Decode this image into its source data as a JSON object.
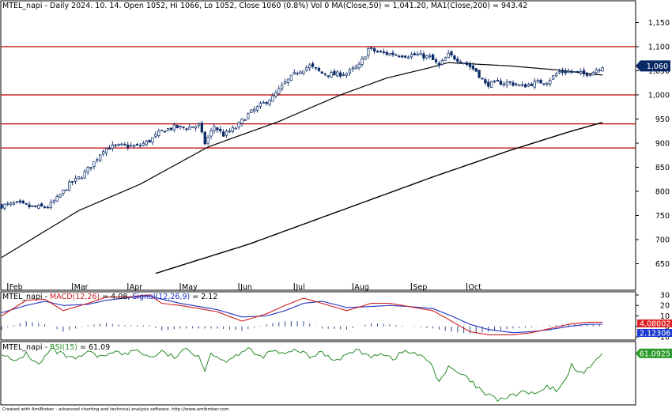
{
  "header": {
    "title": "MTEL_napi - Daily 2024. 10. 14. Open 1052, Hi 1066, Lo 1052, Close 1060 (0.8%) Vol 0",
    "ma50_label": "MA(Close,50)",
    "ma50_value": "= 1,041.20,",
    "ma200_label": "MA1(Close,200)",
    "ma200_value": "= 943.42"
  },
  "macd_header": {
    "ticker": "MTEL_napi -",
    "macd_label": "MACD(12,26)",
    "macd_value": "= 4.08,",
    "signal_label": "Signal(12,26,9)",
    "signal_value": "= 2.12"
  },
  "rsi_header": {
    "ticker": "MTEL_napi -",
    "rsi_label": "RSI(15)",
    "rsi_value": "= 61.09"
  },
  "credit": "Created with AmiBroker - advanced charting and technical analysis software. http://www.amibroker.com",
  "colors": {
    "price_line": "#c00000",
    "ma": "#000000",
    "candle": "#0a2a66",
    "macd": "#d02020",
    "signal": "#2030c0",
    "rsi": "#2a8a2a",
    "last_price_tag": "#0a2a66",
    "macd_tag": "#e02020",
    "signal_tag": "#1a3ad0",
    "rsi_tag": "#2a9a2a"
  },
  "chart_data": [
    {
      "type": "candlestick",
      "title": "MTEL_napi - Daily 2024. 10. 14.",
      "x_labels": [
        "Feb",
        "Mar",
        "Apr",
        "May",
        "Jun",
        "Jul",
        "Aug",
        "Sep",
        "Oct"
      ],
      "y_ticks": [
        650,
        700,
        750,
        800,
        850,
        900,
        950,
        1000,
        1050,
        1100,
        1150
      ],
      "y_tick_labels": [
        "650",
        "700",
        "750",
        "800",
        "850",
        "900",
        "950",
        "1,000",
        "1,050",
        "1,100",
        "1,150"
      ],
      "ylim": [
        620,
        1175
      ],
      "horizontal_lines": [
        1100,
        1000,
        940,
        890
      ],
      "last_price_label": "1,060",
      "last_price": 1060,
      "close_waypoints": [
        [
          0,
          770
        ],
        [
          5,
          775
        ],
        [
          10,
          767
        ],
        [
          15,
          768
        ],
        [
          18,
          785
        ],
        [
          22,
          815
        ],
        [
          26,
          832
        ],
        [
          30,
          860
        ],
        [
          33,
          887
        ],
        [
          36,
          893
        ],
        [
          40,
          895
        ],
        [
          44,
          893
        ],
        [
          48,
          905
        ],
        [
          52,
          925
        ],
        [
          56,
          933
        ],
        [
          60,
          932
        ],
        [
          64,
          937
        ],
        [
          66,
          900
        ],
        [
          69,
          935
        ],
        [
          72,
          917
        ],
        [
          76,
          932
        ],
        [
          80,
          960
        ],
        [
          84,
          978
        ],
        [
          88,
          995
        ],
        [
          92,
          1025
        ],
        [
          96,
          1048
        ],
        [
          100,
          1060
        ],
        [
          104,
          1045
        ],
        [
          108,
          1042
        ],
        [
          112,
          1045
        ],
        [
          116,
          1060
        ],
        [
          119,
          1095
        ],
        [
          123,
          1087
        ],
        [
          127,
          1085
        ],
        [
          131,
          1082
        ],
        [
          135,
          1083
        ],
        [
          139,
          1078
        ],
        [
          142,
          1060
        ],
        [
          145,
          1083
        ],
        [
          150,
          1068
        ],
        [
          154,
          1050
        ],
        [
          157,
          1022
        ],
        [
          161,
          1025
        ],
        [
          165,
          1025
        ],
        [
          169,
          1018
        ],
        [
          173,
          1025
        ],
        [
          177,
          1028
        ],
        [
          181,
          1048
        ],
        [
          185,
          1048
        ],
        [
          189,
          1043
        ],
        [
          192,
          1048
        ],
        [
          195,
          1060
        ]
      ],
      "ma50": [
        [
          0,
          663
        ],
        [
          25,
          760
        ],
        [
          45,
          815
        ],
        [
          67,
          892
        ],
        [
          90,
          945
        ],
        [
          110,
          1000
        ],
        [
          125,
          1035
        ],
        [
          140,
          1058
        ],
        [
          145,
          1067
        ],
        [
          165,
          1060
        ],
        [
          180,
          1052
        ],
        [
          195,
          1041
        ]
      ],
      "ma200": [
        [
          50,
          630
        ],
        [
          80,
          690
        ],
        [
          110,
          760
        ],
        [
          140,
          830
        ],
        [
          165,
          885
        ],
        [
          185,
          925
        ],
        [
          195,
          943
        ]
      ]
    },
    {
      "type": "line",
      "title": "MACD(12,26), Signal(12,26,9)",
      "y_ticks": [
        -10,
        0,
        10,
        20,
        30
      ],
      "ylim": [
        -13,
        33
      ],
      "series": [
        {
          "name": "MACD(12,26)",
          "last_label": "4.08002",
          "points": [
            [
              0,
              10
            ],
            [
              8,
              25
            ],
            [
              14,
              26
            ],
            [
              20,
              15
            ],
            [
              28,
              22
            ],
            [
              34,
              28
            ],
            [
              40,
              28
            ],
            [
              48,
              30
            ],
            [
              52,
              22
            ],
            [
              58,
              20
            ],
            [
              64,
              17
            ],
            [
              70,
              14
            ],
            [
              78,
              5
            ],
            [
              86,
              12
            ],
            [
              92,
              20
            ],
            [
              98,
              27
            ],
            [
              104,
              22
            ],
            [
              112,
              15
            ],
            [
              120,
              22
            ],
            [
              126,
              22
            ],
            [
              132,
              19
            ],
            [
              140,
              15
            ],
            [
              146,
              5
            ],
            [
              152,
              -5
            ],
            [
              158,
              -8
            ],
            [
              166,
              -8
            ],
            [
              172,
              -6
            ],
            [
              178,
              -2
            ],
            [
              184,
              2
            ],
            [
              190,
              4
            ],
            [
              195,
              4.08
            ]
          ]
        },
        {
          "name": "Signal(12,26,9)",
          "last_label": "2.12306",
          "points": [
            [
              0,
              13
            ],
            [
              8,
              20
            ],
            [
              14,
              24
            ],
            [
              20,
              20
            ],
            [
              28,
              21
            ],
            [
              34,
              25
            ],
            [
              40,
              27
            ],
            [
              48,
              29
            ],
            [
              52,
              26
            ],
            [
              58,
              22
            ],
            [
              64,
              19
            ],
            [
              70,
              16
            ],
            [
              78,
              9
            ],
            [
              86,
              10
            ],
            [
              92,
              15
            ],
            [
              98,
              22
            ],
            [
              104,
              24
            ],
            [
              112,
              18
            ],
            [
              120,
              19
            ],
            [
              126,
              20
            ],
            [
              132,
              19
            ],
            [
              140,
              17
            ],
            [
              146,
              10
            ],
            [
              152,
              2
            ],
            [
              158,
              -3
            ],
            [
              166,
              -6
            ],
            [
              172,
              -5
            ],
            [
              178,
              -3
            ],
            [
              184,
              0
            ],
            [
              190,
              2
            ],
            [
              195,
              2.12
            ]
          ]
        }
      ]
    },
    {
      "type": "line",
      "title": "RSI(15)",
      "series": [
        {
          "name": "RSI(15)",
          "last_label": "61.0925",
          "points": [
            [
              0,
              62
            ],
            [
              4,
              54
            ],
            [
              8,
              61
            ],
            [
              12,
              52
            ],
            [
              16,
              64
            ],
            [
              20,
              60
            ],
            [
              24,
              56
            ],
            [
              28,
              62
            ],
            [
              32,
              58
            ],
            [
              36,
              63
            ],
            [
              40,
              60
            ],
            [
              44,
              64
            ],
            [
              48,
              58
            ],
            [
              52,
              62
            ],
            [
              56,
              58
            ],
            [
              60,
              64
            ],
            [
              64,
              60
            ],
            [
              66,
              48
            ],
            [
              68,
              62
            ],
            [
              72,
              55
            ],
            [
              76,
              60
            ],
            [
              80,
              64
            ],
            [
              84,
              58
            ],
            [
              88,
              63
            ],
            [
              92,
              60
            ],
            [
              96,
              64
            ],
            [
              100,
              58
            ],
            [
              104,
              62
            ],
            [
              108,
              56
            ],
            [
              112,
              60
            ],
            [
              116,
              64
            ],
            [
              119,
              58
            ],
            [
              123,
              62
            ],
            [
              127,
              57
            ],
            [
              131,
              63
            ],
            [
              135,
              60
            ],
            [
              139,
              55
            ],
            [
              142,
              40
            ],
            [
              145,
              50
            ],
            [
              150,
              44
            ],
            [
              154,
              36
            ],
            [
              157,
              30
            ],
            [
              161,
              26
            ],
            [
              165,
              28
            ],
            [
              169,
              32
            ],
            [
              173,
              30
            ],
            [
              177,
              35
            ],
            [
              181,
              33
            ],
            [
              185,
              52
            ],
            [
              189,
              45
            ],
            [
              192,
              55
            ],
            [
              195,
              61.09
            ]
          ]
        }
      ]
    }
  ]
}
